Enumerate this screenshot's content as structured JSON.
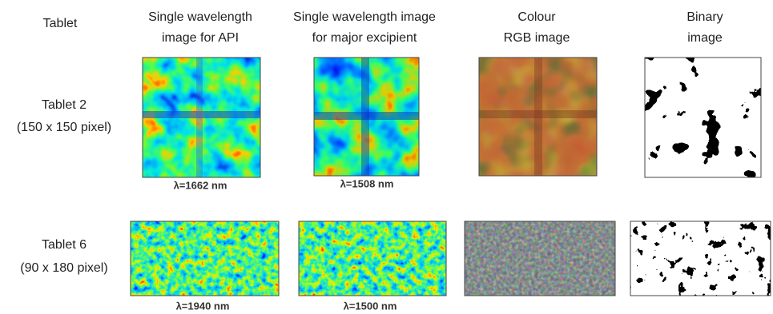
{
  "header": {
    "row_label": "Tablet",
    "columns": [
      [
        "Single wavelength",
        "image for API"
      ],
      [
        "Single wavelength image",
        "for major excipient"
      ],
      [
        "Colour",
        "RGB image"
      ],
      [
        "Binary",
        "image"
      ]
    ]
  },
  "rows": [
    {
      "label": [
        "Tablet 2",
        "(150 x 150 pixel)"
      ],
      "captions": [
        "λ=1662 nm",
        "λ=1508 nm"
      ]
    },
    {
      "label": [
        "Tablet 6",
        "(90 x 180 pixel)"
      ],
      "captions": [
        "λ=1940 nm",
        "λ=1500 nm"
      ]
    }
  ]
}
